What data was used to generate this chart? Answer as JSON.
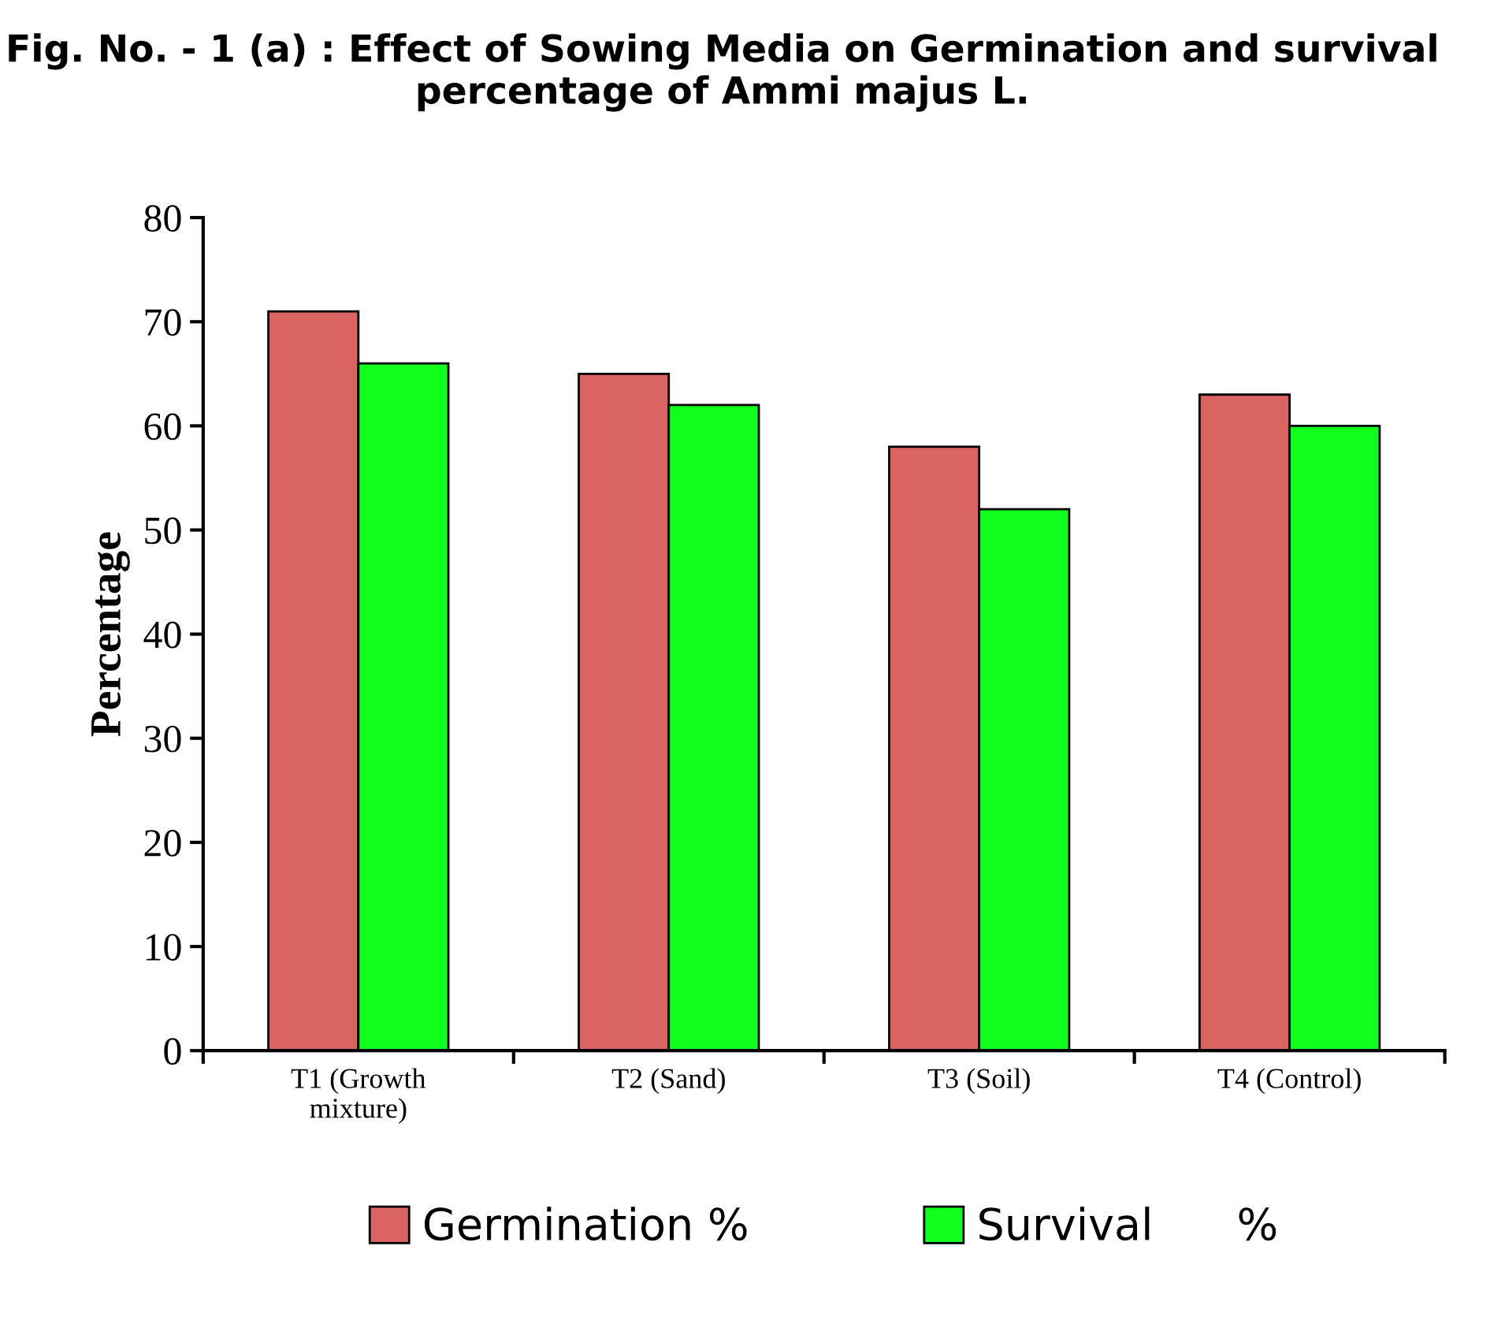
{
  "chart_data": {
    "type": "bar",
    "title": "Fig. No. - 1 (a) : Effect of Sowing Media on Germination and survival percentage of Ammi majus L.",
    "ylabel": "Percentage",
    "categories": [
      "T1 (Growth\nmixture)",
      "T2 (Sand)",
      "T3 (Soil)",
      "T4 (Control)"
    ],
    "series": [
      {
        "name": "Germination %",
        "color": "#d96461",
        "values": [
          71,
          65,
          58,
          63
        ]
      },
      {
        "name": "Survival      %",
        "color": "#10ff1c",
        "values": [
          66,
          62,
          52,
          60
        ]
      }
    ],
    "ylim": [
      0,
      80
    ],
    "yticks": [
      0,
      10,
      20,
      30,
      40,
      50,
      60,
      70,
      80
    ],
    "grid": false,
    "legend": "bottom"
  }
}
